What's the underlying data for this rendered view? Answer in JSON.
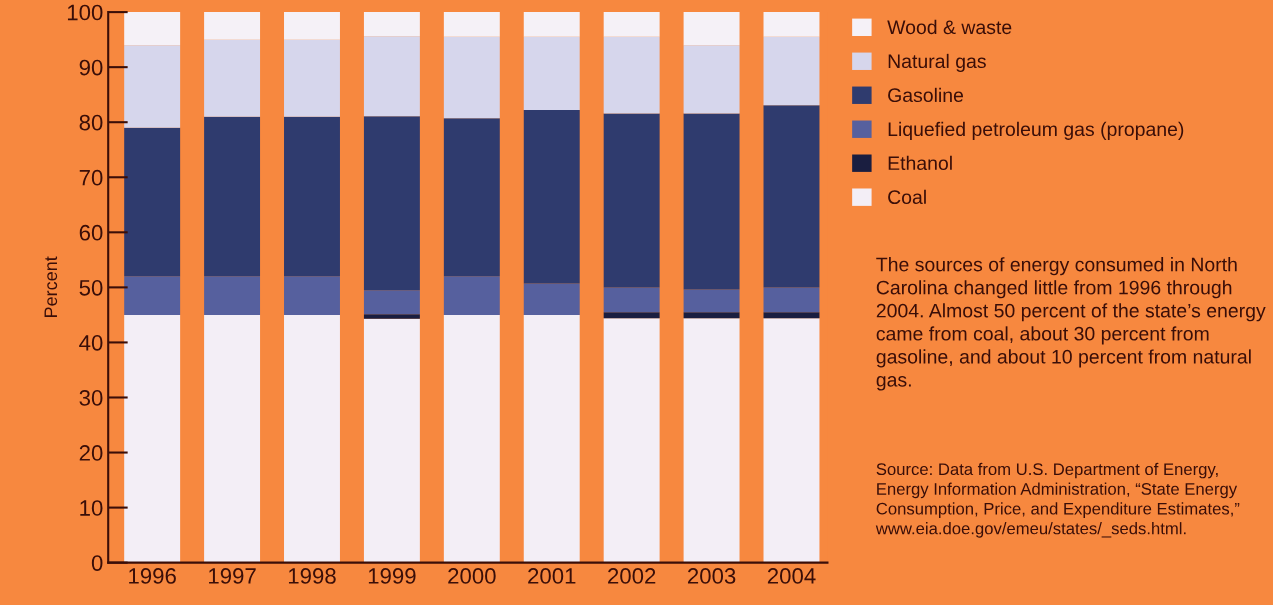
{
  "chart_data": {
    "type": "bar",
    "stacked": true,
    "ylabel": "Percent",
    "categories": [
      "1996",
      "1997",
      "1998",
      "1999",
      "2000",
      "2001",
      "2002",
      "2003",
      "2004"
    ],
    "series": [
      {
        "name": "Coal",
        "color": "#f3eef6",
        "values": [
          45,
          45,
          45,
          44.3,
          45,
          45,
          44.4,
          44.4,
          44.4
        ]
      },
      {
        "name": "Ethanol",
        "color": "#1a1e40",
        "values": [
          0,
          0,
          0,
          0.8,
          0,
          0,
          1.1,
          1.1,
          1.1
        ]
      },
      {
        "name": "Liquefied petroleum gas (propane)",
        "color": "#56609e",
        "values": [
          7,
          7,
          7,
          4.4,
          7,
          5.7,
          4.5,
          4.1,
          4.5
        ]
      },
      {
        "name": "Gasoline",
        "color": "#2f3b6e",
        "values": [
          27,
          29,
          29,
          31.6,
          28.7,
          31.5,
          31.6,
          32,
          33.1
        ]
      },
      {
        "name": "Natural gas",
        "color": "#d6d6ec",
        "values": [
          15,
          14,
          14,
          14.5,
          14.8,
          13.3,
          13.9,
          12.4,
          12.4
        ]
      },
      {
        "name": "Wood & waste",
        "color": "#f5f1f7",
        "values": [
          6,
          5,
          5,
          4.4,
          4.5,
          4.5,
          4.5,
          6,
          4.5
        ]
      }
    ],
    "ylim": [
      0,
      100
    ],
    "yticks": [
      0,
      10,
      20,
      30,
      40,
      50,
      60,
      70,
      80,
      90,
      100
    ],
    "grid": false,
    "legend": "top right",
    "annotations": [
      "The sources of energy consumed in North Carolina changed little from 1996 through 2004. Almost 50 percent of the state’s energy came from coal, about 30 percent from gasoline, and about 10 percent from natural gas.",
      "Source: Data from U.S. Department of Energy, Energy Information Administration, “State Energy Consumption, Price, and Expenditure Estimates,” www.eia.doe.gov/emeu/states/_seds.html."
    ]
  }
}
